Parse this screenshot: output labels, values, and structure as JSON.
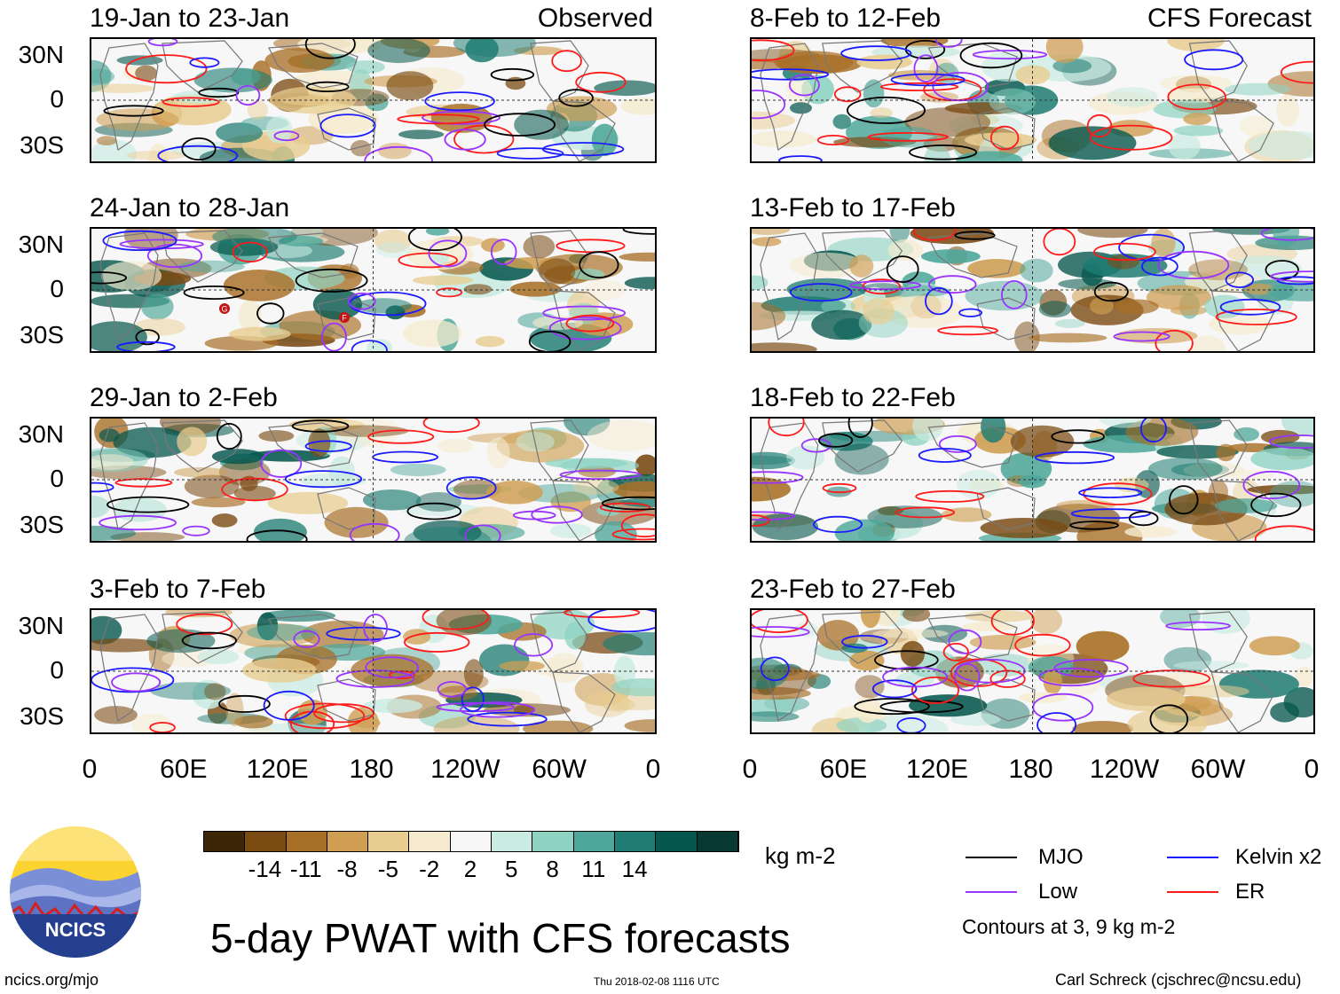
{
  "observed_label": "Observed",
  "forecast_label": "CFS Forecast",
  "panels": [
    {
      "title": "19-Jan to 23-Jan",
      "column": "observed"
    },
    {
      "title": "24-Jan to 28-Jan",
      "column": "observed"
    },
    {
      "title": "29-Jan to 2-Feb",
      "column": "observed"
    },
    {
      "title": "3-Feb to 7-Feb",
      "column": "observed"
    },
    {
      "title": "8-Feb to 12-Feb",
      "column": "forecast"
    },
    {
      "title": "13-Feb to 17-Feb",
      "column": "forecast"
    },
    {
      "title": "18-Feb to 22-Feb",
      "column": "forecast"
    },
    {
      "title": "23-Feb to 27-Feb",
      "column": "forecast"
    }
  ],
  "lat_labels": [
    "30N",
    "0",
    "30S"
  ],
  "lon_labels": [
    "0",
    "60E",
    "120E",
    "180",
    "120W",
    "60W",
    "0"
  ],
  "colorbar": {
    "units": "kg m-2",
    "ticks": [
      "-14",
      "-11",
      "-8",
      "-5",
      "-2",
      "2",
      "5",
      "8",
      "11",
      "14"
    ],
    "colors": [
      "#3d2606",
      "#7a4a13",
      "#a86f26",
      "#cf9e52",
      "#e8cd91",
      "#f6ebcf",
      "#f7f7f7",
      "#c9ebe2",
      "#8ed3c2",
      "#4ea79a",
      "#1f7d73",
      "#06574e",
      "#063a33"
    ]
  },
  "legend": {
    "items": [
      {
        "label": "MJO",
        "color": "#000000"
      },
      {
        "label": "Kelvin x2",
        "color": "#1a1aff"
      },
      {
        "label": "Low",
        "color": "#9933ff"
      },
      {
        "label": "ER",
        "color": "#ff1a1a"
      }
    ],
    "contours_note": "Contours at 3, 9 kg m-2"
  },
  "main_title": "5-day PWAT with CFS forecasts",
  "logo_text": "NCICS",
  "footer": {
    "url": "ncics.org/mjo",
    "timestamp": "Thu 2018-02-08 1116 UTC",
    "credit": "Carl Schreck (cjschrec@ncsu.edu)"
  },
  "storm_markers": [
    "G",
    "F"
  ]
}
